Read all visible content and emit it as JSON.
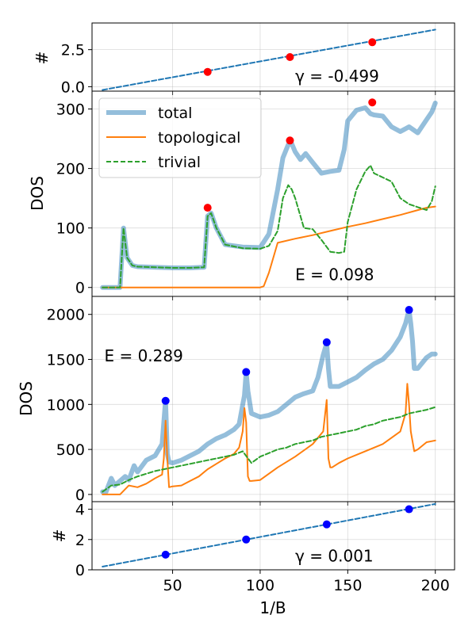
{
  "chart_data": [
    {
      "type": "line",
      "ylabel": "#",
      "xlim": [
        4,
        211
      ],
      "ylim": [
        -0.3,
        4.3
      ],
      "yticks": [
        0.0,
        2.5
      ],
      "ytick_labels": [
        "0.0",
        "2.5"
      ],
      "grid": true,
      "annotation": "γ = -0.499",
      "annotation_at": [
        120,
        0.35
      ],
      "series": [
        {
          "kind": "fit",
          "color": "#1f77b4",
          "dash": "dashed",
          "x": [
            10,
            200
          ],
          "y": [
            -0.22,
            3.85
          ]
        },
        {
          "kind": "markers",
          "color": "#ff0000",
          "x": [
            70,
            117,
            164
          ],
          "y": [
            1.0,
            2.0,
            3.0
          ]
        }
      ]
    },
    {
      "type": "line",
      "ylabel": "DOS",
      "xlim": [
        4,
        211
      ],
      "ylim": [
        -15,
        330
      ],
      "yticks": [
        0,
        100,
        200,
        300
      ],
      "ytick_labels": [
        "0",
        "100",
        "200",
        "300"
      ],
      "grid": true,
      "annotation": "E = 0.098",
      "annotation_at": [
        120,
        12
      ],
      "legend": {
        "placement": "top-left",
        "entries": [
          "total",
          "topological",
          "trivial"
        ]
      },
      "series": [
        {
          "name": "total",
          "color": "#1f77b4",
          "width": 6,
          "opacity": 0.48,
          "x": [
            10,
            20,
            22,
            24,
            27,
            30,
            40,
            50,
            60,
            68,
            70,
            72,
            75,
            80,
            90,
            100,
            105,
            110,
            113,
            116,
            118,
            120,
            123,
            126,
            130,
            135,
            140,
            145,
            148,
            150,
            155,
            160,
            163,
            165,
            170,
            175,
            180,
            185,
            190,
            195,
            198,
            200
          ],
          "y": [
            0,
            0,
            100,
            50,
            37,
            35,
            34,
            33,
            33,
            34,
            120,
            125,
            100,
            72,
            68,
            67,
            90,
            165,
            218,
            240,
            242,
            228,
            215,
            225,
            210,
            192,
            195,
            197,
            232,
            280,
            298,
            302,
            292,
            290,
            288,
            270,
            262,
            270,
            260,
            282,
            295,
            310
          ]
        },
        {
          "name": "topological",
          "color": "#ff7f0e",
          "width": 2,
          "x": [
            10,
            100,
            102,
            105,
            110,
            120,
            130,
            140,
            150,
            160,
            170,
            180,
            190,
            195,
            200
          ],
          "y": [
            0,
            0,
            2,
            25,
            75,
            82,
            88,
            95,
            102,
            108,
            115,
            122,
            130,
            134,
            136
          ]
        },
        {
          "name": "trivial",
          "color": "#2ca02c",
          "width": 2,
          "dash": "dashed",
          "x": [
            10,
            20,
            22,
            24,
            27,
            30,
            40,
            50,
            60,
            68,
            70,
            72,
            75,
            80,
            90,
            100,
            105,
            110,
            113,
            116,
            118,
            120,
            125,
            130,
            135,
            140,
            145,
            148,
            150,
            155,
            160,
            163,
            165,
            170,
            175,
            180,
            185,
            190,
            195,
            198,
            200
          ],
          "y": [
            0,
            0,
            100,
            50,
            37,
            35,
            34,
            33,
            33,
            34,
            120,
            125,
            100,
            72,
            66,
            65,
            70,
            95,
            150,
            172,
            165,
            150,
            100,
            98,
            80,
            60,
            58,
            60,
            110,
            165,
            195,
            205,
            192,
            185,
            178,
            150,
            140,
            135,
            130,
            145,
            170
          ]
        },
        {
          "kind": "markers",
          "color": "#ff0000",
          "x": [
            70,
            117,
            164
          ],
          "y": [
            134,
            247,
            311
          ]
        }
      ]
    },
    {
      "type": "line",
      "ylabel": "DOS",
      "xlim": [
        4,
        211
      ],
      "ylim": [
        -80,
        2200
      ],
      "yticks": [
        0,
        500,
        1000,
        1500,
        2000
      ],
      "ytick_labels": [
        "0",
        "500",
        "1000",
        "1500",
        "2000"
      ],
      "grid": true,
      "annotation": "E = 0.289",
      "annotation_at": [
        11,
        1480
      ],
      "series": [
        {
          "name": "total",
          "color": "#1f77b4",
          "width": 6,
          "opacity": 0.48,
          "x": [
            10,
            12,
            15,
            17,
            20,
            23,
            25,
            28,
            30,
            35,
            40,
            44,
            46,
            47,
            48,
            50,
            55,
            60,
            65,
            70,
            75,
            80,
            85,
            88,
            91,
            92,
            93,
            95,
            100,
            105,
            110,
            115,
            120,
            125,
            130,
            133,
            136,
            138,
            139,
            140,
            145,
            150,
            155,
            160,
            165,
            170,
            175,
            180,
            183,
            185,
            186,
            187,
            188,
            190,
            195,
            198,
            200
          ],
          "y": [
            30,
            30,
            180,
            100,
            150,
            200,
            160,
            320,
            250,
            380,
            430,
            560,
            1050,
            450,
            360,
            350,
            380,
            430,
            480,
            560,
            620,
            660,
            720,
            780,
            1100,
            1360,
            1150,
            900,
            860,
            880,
            920,
            1000,
            1080,
            1120,
            1150,
            1300,
            1550,
            1680,
            1400,
            1200,
            1200,
            1250,
            1300,
            1380,
            1450,
            1500,
            1600,
            1750,
            1900,
            2050,
            1900,
            1700,
            1400,
            1400,
            1520,
            1560,
            1560
          ]
        },
        {
          "name": "topological",
          "color": "#ff7f0e",
          "width": 2,
          "x": [
            10,
            20,
            25,
            30,
            35,
            40,
            44,
            45,
            46,
            47,
            48,
            50,
            55,
            60,
            65,
            70,
            75,
            80,
            85,
            88,
            90,
            91,
            92,
            93,
            94,
            95,
            100,
            110,
            120,
            130,
            136,
            138,
            139,
            140,
            141,
            145,
            150,
            160,
            170,
            180,
            183,
            184,
            185,
            186,
            188,
            190,
            195,
            200
          ],
          "y": [
            0,
            0,
            100,
            80,
            120,
            180,
            220,
            400,
            820,
            400,
            80,
            90,
            100,
            150,
            200,
            280,
            340,
            400,
            450,
            520,
            700,
            960,
            800,
            200,
            150,
            150,
            160,
            300,
            420,
            560,
            700,
            1050,
            400,
            300,
            300,
            350,
            400,
            480,
            560,
            700,
            900,
            1230,
            1000,
            700,
            480,
            500,
            580,
            600
          ]
        },
        {
          "name": "trivial",
          "color": "#2ca02c",
          "width": 2,
          "dash": "dashed",
          "x": [
            10,
            15,
            20,
            25,
            30,
            35,
            40,
            45,
            50,
            55,
            60,
            65,
            70,
            75,
            80,
            85,
            90,
            95,
            100,
            105,
            110,
            115,
            120,
            125,
            130,
            135,
            140,
            145,
            150,
            155,
            160,
            165,
            170,
            175,
            180,
            185,
            190,
            195,
            200
          ],
          "y": [
            30,
            100,
            110,
            160,
            200,
            230,
            260,
            280,
            300,
            320,
            340,
            360,
            380,
            400,
            420,
            440,
            480,
            350,
            420,
            460,
            500,
            520,
            560,
            580,
            600,
            640,
            660,
            680,
            700,
            720,
            760,
            780,
            820,
            840,
            860,
            900,
            920,
            940,
            970
          ]
        },
        {
          "kind": "markers",
          "color": "#0000ff",
          "x": [
            46,
            92,
            138,
            185
          ],
          "y": [
            1040,
            1360,
            1690,
            2050
          ]
        }
      ]
    },
    {
      "type": "line",
      "ylabel": "#",
      "xlabel": "1/B",
      "xlim": [
        4,
        211
      ],
      "ylim": [
        0,
        4.5
      ],
      "yticks": [
        0,
        2,
        4
      ],
      "ytick_labels": [
        "0",
        "2",
        "4"
      ],
      "xticks": [
        50,
        100,
        150,
        200
      ],
      "xtick_labels": [
        "50",
        "100",
        "150",
        "200"
      ],
      "grid": true,
      "annotation": "γ = 0.001",
      "annotation_at": [
        120,
        0.55
      ],
      "series": [
        {
          "kind": "fit",
          "color": "#1f77b4",
          "dash": "dashed",
          "x": [
            10,
            200
          ],
          "y": [
            0.21,
            4.35
          ]
        },
        {
          "kind": "markers",
          "color": "#0000ff",
          "x": [
            46,
            92,
            138,
            185
          ],
          "y": [
            1.0,
            2.0,
            3.0,
            4.0
          ]
        }
      ]
    }
  ]
}
